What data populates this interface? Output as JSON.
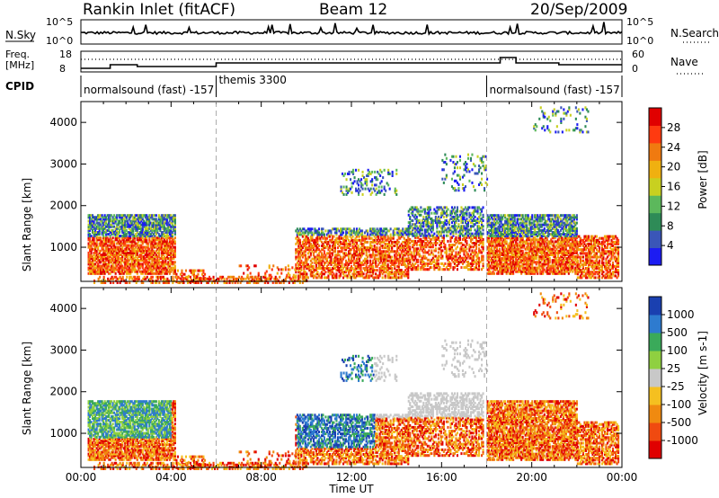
{
  "header": {
    "station": "Rankin Inlet (fitACF)",
    "beam": "Beam 12",
    "date": "20/Sep/2009"
  },
  "panels": {
    "nsky": {
      "label": "N.Sky",
      "right_label": "N.Search",
      "left_ticks": [
        "10^5",
        "10^0"
      ],
      "right_ticks": [
        "10^5",
        "10^0"
      ]
    },
    "freq": {
      "label": "Freq.",
      "unit": "[MHz]",
      "right_label": "Nave",
      "left_ticks": [
        "18",
        "8"
      ],
      "right_ticks": [
        "60",
        "0"
      ]
    },
    "cpid": {
      "label": "CPID",
      "segments": [
        {
          "text": "normalsound (fast)  -157",
          "start_hour": 0
        },
        {
          "text": "themis 3300",
          "start_hour": 6
        },
        {
          "text": "normalsound (fast)  -157",
          "start_hour": 18
        }
      ]
    }
  },
  "chart_data": [
    {
      "type": "heatmap",
      "title": "Power",
      "ylabel": "Slant Range [km]",
      "xlabel": "",
      "ylim": [
        180,
        4500
      ],
      "y_ticks": [
        "1000",
        "2000",
        "3000",
        "4000"
      ],
      "colorbar": {
        "label": "Power [dB]",
        "ticks": [
          "4",
          "8",
          "12",
          "16",
          "20",
          "24",
          "28"
        ],
        "range": [
          0,
          30
        ],
        "colors": [
          "#1c1cf2",
          "#3a56b8",
          "#2e8b57",
          "#5cb85c",
          "#c8d020",
          "#f0b010",
          "#f07a10",
          "#ff3a10",
          "#e00000"
        ]
      }
    },
    {
      "type": "heatmap",
      "title": "Velocity",
      "ylabel": "Slant Range [km]",
      "xlabel": "Time UT",
      "ylim": [
        180,
        4500
      ],
      "y_ticks": [
        "1000",
        "2000",
        "3000",
        "4000"
      ],
      "x_ticks": [
        "00:00",
        "04:00",
        "08:00",
        "12:00",
        "16:00",
        "20:00",
        "00:00"
      ],
      "x_range_hours": [
        0,
        24
      ],
      "colorbar": {
        "label": "Velocity [m s-1]",
        "ticks": [
          "1000",
          "500",
          "100",
          "25",
          "-25",
          "-100",
          "-500",
          "-1000"
        ],
        "colors": [
          "#1a40b0",
          "#2e7bcf",
          "#3aaa5a",
          "#8fd040",
          "#c8c8c8",
          "#f5c020",
          "#f08a10",
          "#f04a10",
          "#e00000"
        ]
      }
    }
  ],
  "colors": {
    "ground_scatter": "#c8c8c8",
    "axis": "#000000",
    "dash_line": "#999999"
  }
}
